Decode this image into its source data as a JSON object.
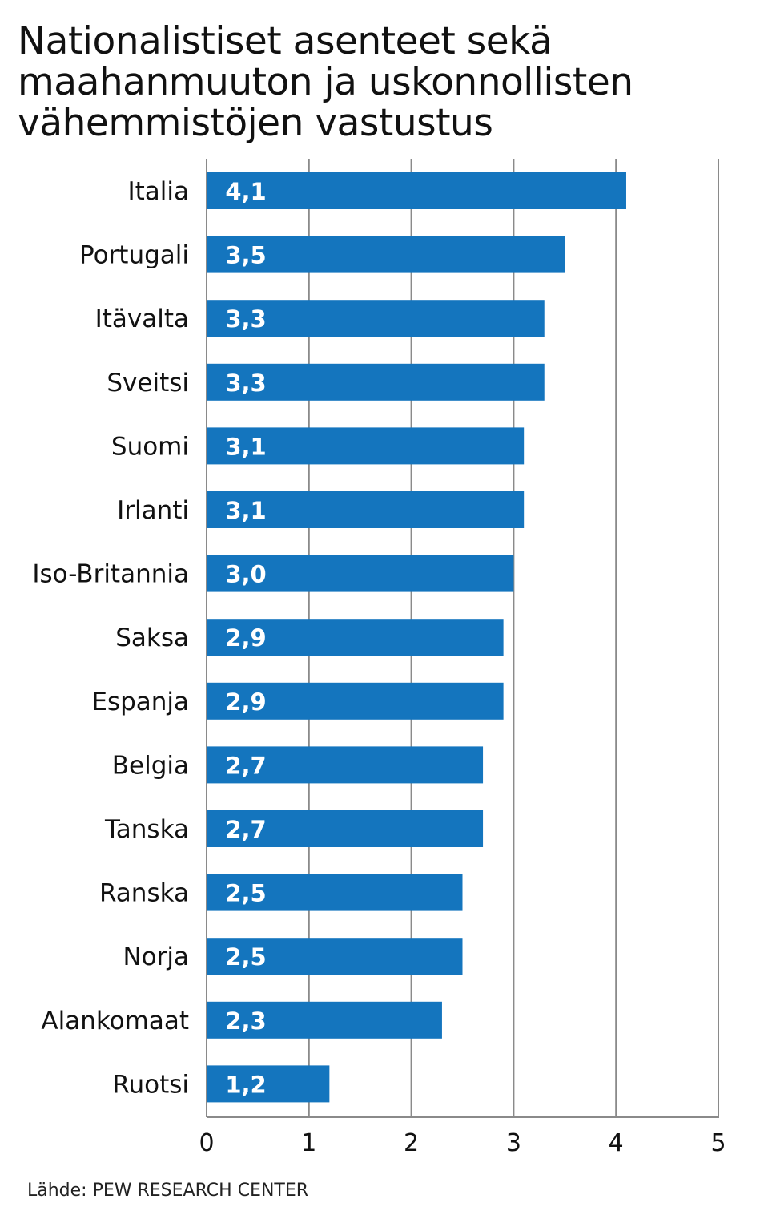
{
  "title_lines": [
    "Nationalistiset asenteet sekä",
    "maahanmuuton ja uskonnollisten",
    "vähemmistöjen vastustus"
  ],
  "source": "Lähde: PEW RESEARCH CENTER",
  "colors": {
    "bar": "#1475be",
    "gridline": "#8a8a8a",
    "bar_label": "#ffffff",
    "text": "#111111"
  },
  "chart_data": {
    "type": "bar",
    "orientation": "horizontal",
    "title": "Nationalistiset asenteet sekä maahanmuuton ja uskonnollisten vähemmistöjen vastustus",
    "categories": [
      "Italia",
      "Portugali",
      "Itävalta",
      "Sveitsi",
      "Suomi",
      "Irlanti",
      "Iso-Britannia",
      "Saksa",
      "Espanja",
      "Belgia",
      "Tanska",
      "Ranska",
      "Norja",
      "Alankomaat",
      "Ruotsi"
    ],
    "values": [
      4.1,
      3.5,
      3.3,
      3.3,
      3.1,
      3.1,
      3.0,
      2.9,
      2.9,
      2.7,
      2.7,
      2.5,
      2.5,
      2.3,
      1.2
    ],
    "value_labels": [
      "4,1",
      "3,5",
      "3,3",
      "3,3",
      "3,1",
      "3,1",
      "3,0",
      "2,9",
      "2,9",
      "2,7",
      "2,7",
      "2,5",
      "2,5",
      "2,3",
      "1,2"
    ],
    "xticks": [
      "0",
      "1",
      "2",
      "3",
      "4",
      "5"
    ],
    "xlim": [
      0,
      5
    ],
    "xlabel": "",
    "ylabel": "",
    "grid": true
  }
}
